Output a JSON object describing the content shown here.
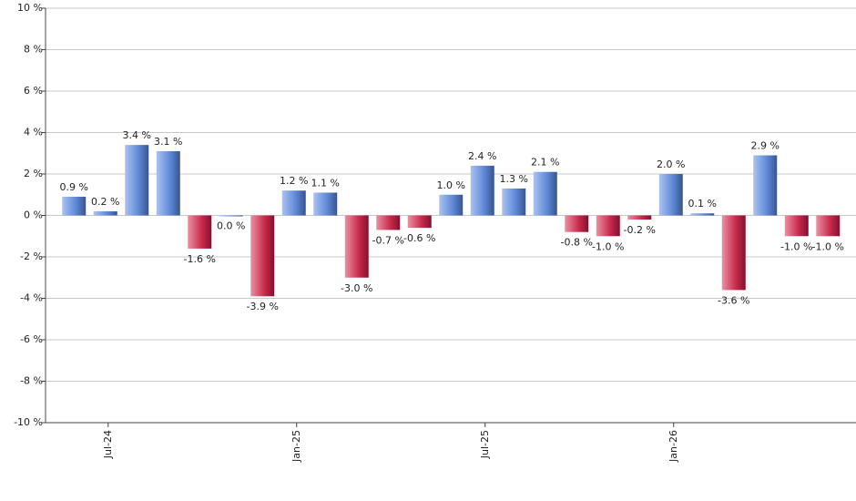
{
  "chart_data": {
    "type": "bar",
    "categories": [
      null,
      "Jul-24",
      null,
      null,
      null,
      null,
      null,
      "Jan-25",
      null,
      null,
      null,
      null,
      null,
      "Jul-25",
      null,
      null,
      null,
      null,
      null,
      "Jan-26",
      null,
      null,
      null,
      null,
      null
    ],
    "values": [
      0.9,
      0.2,
      3.4,
      3.1,
      -1.6,
      0.0,
      -3.9,
      1.2,
      1.1,
      -3.0,
      -0.7,
      -0.6,
      1.0,
      2.4,
      1.3,
      2.1,
      -0.8,
      -1.0,
      -0.2,
      2.0,
      0.1,
      -3.6,
      2.9,
      -1.0,
      -1.0
    ],
    "value_labels": [
      "0.9 %",
      "0.2 %",
      "3.4 %",
      "3.1 %",
      "-1.6 %",
      "0.0 %",
      "-3.9 %",
      "1.2 %",
      "1.1 %",
      "-3.0 %",
      "-0.7 %",
      "-0.6 %",
      "1.0 %",
      "2.4 %",
      "1.3 %",
      "2.1 %",
      "-0.8 %",
      "-1.0 %",
      "-0.2 %",
      "2.0 %",
      "0.1 %",
      "-3.6 %",
      "2.9 %",
      "-1.0 %",
      "-1.0 %"
    ],
    "ylim": [
      -10,
      10
    ],
    "yticks": [
      {
        "value": 10,
        "label": "10 %"
      },
      {
        "value": 8,
        "label": "8 %"
      },
      {
        "value": 6,
        "label": "6 %"
      },
      {
        "value": 4,
        "label": "4 %"
      },
      {
        "value": 2,
        "label": "2 %"
      },
      {
        "value": 0,
        "label": "0 %"
      },
      {
        "value": -2,
        "label": "-2 %"
      },
      {
        "value": -4,
        "label": "-4 %"
      },
      {
        "value": -6,
        "label": "-6 %"
      },
      {
        "value": -8,
        "label": "-8 %"
      },
      {
        "value": -10,
        "label": "-10 %"
      }
    ],
    "grid": true,
    "positive_color": "#5b86d6",
    "negative_color": "#c8284a"
  }
}
